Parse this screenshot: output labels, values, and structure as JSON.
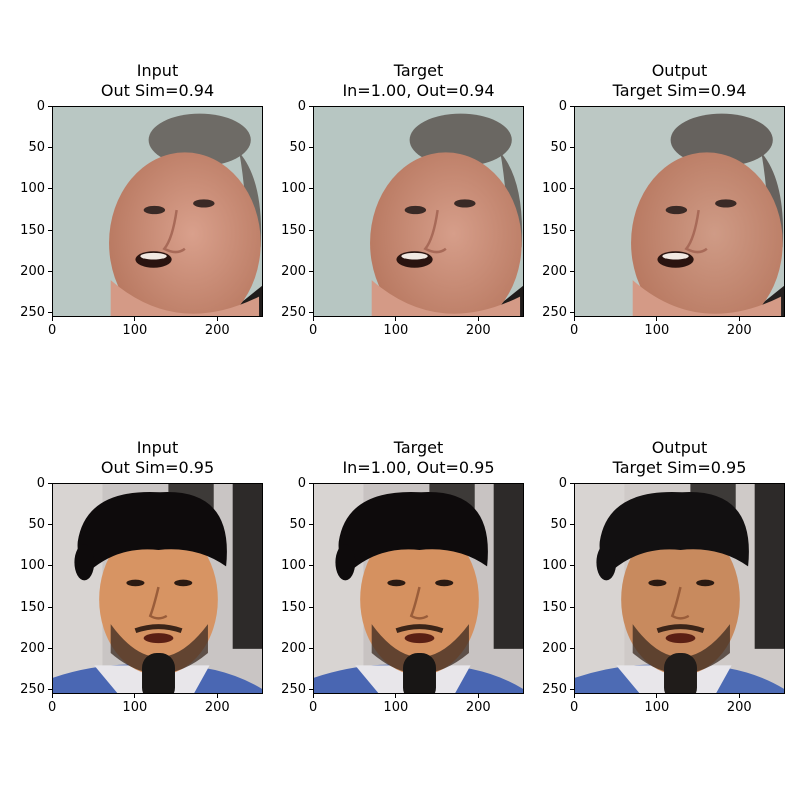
{
  "chart_data": [
    {
      "type": "image",
      "title_line1": "Input",
      "title_line2": "Out Sim=0.94",
      "xticks": [
        0,
        100,
        200
      ],
      "yticks": [
        0,
        50,
        100,
        150,
        200,
        250
      ],
      "xlim": [
        0,
        255
      ],
      "ylim": [
        255,
        0
      ],
      "image_semantic": "face-balding-man",
      "palette": {
        "bg": "#b9c7c3",
        "skin": "#d9a08c",
        "hair": "#6e6b66",
        "dark": "#1f1c1b"
      }
    },
    {
      "type": "image",
      "title_line1": "Target",
      "title_line2": "In=1.00, Out=0.94",
      "xticks": [
        0,
        100,
        200
      ],
      "yticks": [
        0,
        50,
        100,
        150,
        200,
        250
      ],
      "xlim": [
        0,
        255
      ],
      "ylim": [
        255,
        0
      ],
      "image_semantic": "face-balding-man",
      "palette": {
        "bg": "#b7c6c2",
        "skin": "#d69e8a",
        "hair": "#6a6762",
        "dark": "#1e1b1a"
      }
    },
    {
      "type": "image",
      "title_line1": "Output",
      "title_line2": "Target Sim=0.94",
      "xticks": [
        0,
        100,
        200
      ],
      "yticks": [
        0,
        50,
        100,
        150,
        200,
        250
      ],
      "xlim": [
        0,
        255
      ],
      "ylim": [
        255,
        0
      ],
      "image_semantic": "face-balding-man",
      "palette": {
        "bg": "#bcc8c4",
        "skin": "#cf9b86",
        "hair": "#66625e",
        "dark": "#24201f"
      }
    },
    {
      "type": "image",
      "title_line1": "Input",
      "title_line2": "Out Sim=0.95",
      "xticks": [
        0,
        100,
        200
      ],
      "yticks": [
        0,
        50,
        100,
        150,
        200,
        250
      ],
      "xlim": [
        0,
        255
      ],
      "ylim": [
        255,
        0
      ],
      "image_semantic": "face-man-with-microphone",
      "palette": {
        "bg": "#c9c5c4",
        "skin": "#d79463",
        "hair": "#0e0b0c",
        "shirt": "#4a67b3",
        "dark": "#181615"
      }
    },
    {
      "type": "image",
      "title_line1": "Target",
      "title_line2": "In=1.00, Out=0.95",
      "xticks": [
        0,
        100,
        200
      ],
      "yticks": [
        0,
        50,
        100,
        150,
        200,
        250
      ],
      "xlim": [
        0,
        255
      ],
      "ylim": [
        255,
        0
      ],
      "image_semantic": "face-man-with-microphone",
      "palette": {
        "bg": "#c8c3c2",
        "skin": "#d59160",
        "hair": "#0e0b0c",
        "shirt": "#4966b2",
        "dark": "#181615"
      }
    },
    {
      "type": "image",
      "title_line1": "Output",
      "title_line2": "Target Sim=0.95",
      "xticks": [
        0,
        100,
        200
      ],
      "yticks": [
        0,
        50,
        100,
        150,
        200,
        250
      ],
      "xlim": [
        0,
        255
      ],
      "ylim": [
        255,
        0
      ],
      "image_semantic": "face-man-with-microphone",
      "palette": {
        "bg": "#cfcac8",
        "skin": "#c88a5e",
        "hair": "#121011",
        "shirt": "#4d6bb4",
        "dark": "#201c1a"
      }
    }
  ]
}
